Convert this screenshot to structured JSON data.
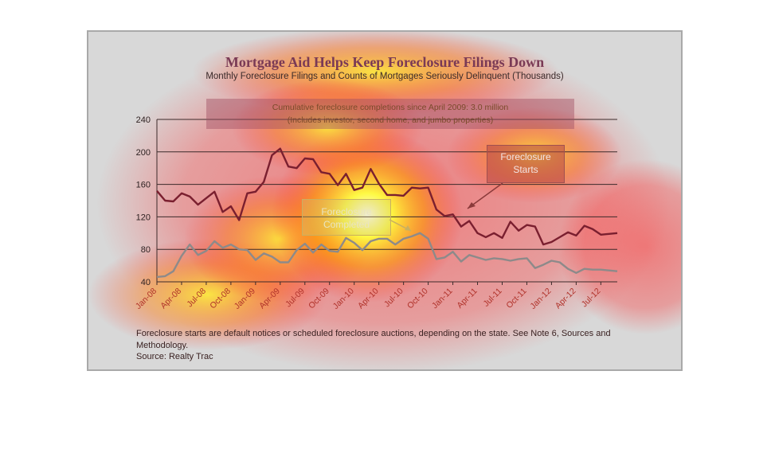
{
  "chart_data": {
    "type": "line",
    "title": "Mortgage Aid Helps Keep Foreclosure Filings Down",
    "subtitle": "Monthly Foreclosure Filings and Counts of Mortgages Seriously Delinquent (Thousands)",
    "ylim": [
      40,
      240
    ],
    "yticks": [
      "40",
      "80",
      "120",
      "160",
      "200",
      "240"
    ],
    "grid": true,
    "x_tick_labels": [
      "Jan-08",
      "Apr-08",
      "Jul-08",
      "Oct-08",
      "Jan-09",
      "Apr-09",
      "Jul-09",
      "Oct-09",
      "Jan-10",
      "Apr-10",
      "Jul-10",
      "Oct-10",
      "Jan-11",
      "Apr-11",
      "Jul-11",
      "Oct-11",
      "Jan-12",
      "Apr-12",
      "Jul-12"
    ],
    "x_start": "Jan-08",
    "x_end": "Sep-12",
    "series": [
      {
        "name": "Foreclosure Starts",
        "color": "#7a1f2f",
        "values": [
          152,
          140,
          139,
          149,
          145,
          135,
          143,
          151,
          126,
          133,
          116,
          149,
          151,
          163,
          196,
          204,
          182,
          180,
          192,
          191,
          175,
          173,
          159,
          173,
          153,
          156,
          179,
          161,
          147,
          147,
          146,
          156,
          155,
          156,
          129,
          121,
          123,
          108,
          115,
          100,
          95,
          100,
          94,
          114,
          103,
          110,
          108,
          86,
          89,
          95,
          101,
          97,
          109,
          105,
          98,
          99,
          100
        ]
      },
      {
        "name": "Foreclosure Completed",
        "color": "#8d8a8a",
        "values": [
          46,
          47,
          53,
          72,
          86,
          73,
          78,
          90,
          82,
          86,
          80,
          79,
          67,
          75,
          71,
          64,
          64,
          79,
          87,
          76,
          86,
          78,
          77,
          94,
          88,
          79,
          90,
          93,
          93,
          86,
          93,
          96,
          100,
          93,
          68,
          70,
          77,
          65,
          73,
          70,
          67,
          69,
          68,
          66,
          68,
          69,
          57,
          61,
          66,
          64,
          56,
          51,
          56,
          55,
          55,
          54,
          53
        ]
      }
    ]
  },
  "annotations": {
    "note_line1": "Cumulative foreclosure completions since April 2009: 3.0 million",
    "note_line2": "(Includes investor, second home, and jumbo properties)",
    "callout_starts_line1": "Foreclosure",
    "callout_starts_line2": "Starts",
    "callout_completed_line1": "Foreclosure",
    "callout_completed_line2": "Completed"
  },
  "footnote": {
    "text": "Foreclosure starts are default notices or scheduled foreclosure auctions, depending on the state. See Note 6, Sources and Methodology.",
    "source": "Source: Realty Trac"
  },
  "colors": {
    "heat_hot": "#ffffff",
    "heat_warm": "#ffff00",
    "heat_mid": "#ff3a3a",
    "background": "#d8d8d8"
  }
}
